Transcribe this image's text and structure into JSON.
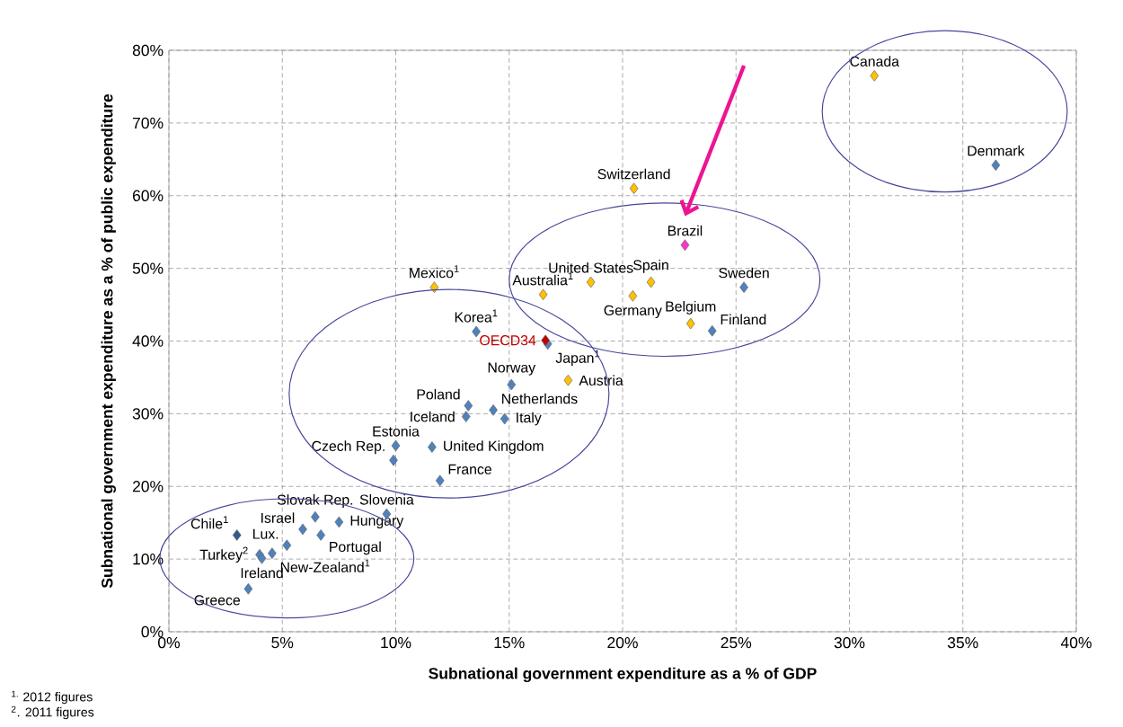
{
  "chart_data": {
    "type": "scatter",
    "xlabel": "Subnational government expenditure as a % of GDP",
    "ylabel": "Subnational government expenditure as a % of public expenditure",
    "xlim": [
      0,
      40
    ],
    "ylim": [
      0,
      80
    ],
    "xticks": [
      {
        "value": 0,
        "label": "0%"
      },
      {
        "value": 5,
        "label": "5%"
      },
      {
        "value": 10,
        "label": "10%"
      },
      {
        "value": 15,
        "label": "15%"
      },
      {
        "value": 20,
        "label": "20%"
      },
      {
        "value": 25,
        "label": "25%"
      },
      {
        "value": 30,
        "label": "30%"
      },
      {
        "value": 35,
        "label": "35%"
      },
      {
        "value": 40,
        "label": "40%"
      }
    ],
    "yticks": [
      {
        "value": 0,
        "label": "0%"
      },
      {
        "value": 10,
        "label": "10%"
      },
      {
        "value": 20,
        "label": "20%"
      },
      {
        "value": 30,
        "label": "30%"
      },
      {
        "value": 40,
        "label": "40%"
      },
      {
        "value": 50,
        "label": "50%"
      },
      {
        "value": 60,
        "label": "60%"
      },
      {
        "value": 70,
        "label": "70%"
      },
      {
        "value": 80,
        "label": "80%"
      }
    ],
    "grid": true,
    "marker": "diamond",
    "legend": false,
    "series": [
      {
        "color": "#4f81bd",
        "x": [
          3.5,
          4.0,
          4.1,
          4.55,
          5.2,
          5.9,
          6.45,
          6.7,
          7.5,
          9.6,
          13.55,
          16.7,
          15.1,
          13.2,
          13.1,
          14.3,
          14.8,
          10.0,
          9.9,
          11.6,
          11.95,
          25.35,
          23.95,
          36.45
        ],
        "values": [
          5.9,
          10.6,
          10.1,
          10.8,
          11.9,
          14.1,
          15.8,
          13.3,
          15.1,
          16.2,
          41.3,
          39.6,
          34.0,
          31.1,
          29.6,
          30.5,
          29.3,
          25.6,
          23.6,
          25.4,
          20.8,
          47.4,
          41.4,
          64.2
        ]
      },
      {
        "color": "#2e5c8a",
        "x": [
          3.0
        ],
        "values": [
          13.3
        ]
      },
      {
        "color": "#ffc000",
        "x": [
          17.6,
          11.7,
          20.5,
          18.6,
          21.25,
          16.5,
          20.45,
          23.0,
          31.1
        ],
        "values": [
          34.6,
          47.4,
          61.0,
          48.1,
          48.1,
          46.4,
          46.2,
          42.4,
          76.5
        ]
      },
      {
        "name": "OECD34",
        "color": "#c00000",
        "x": [
          16.6
        ],
        "values": [
          40.1
        ]
      },
      {
        "color": "#ff33cc",
        "x": [
          22.75
        ],
        "values": [
          53.2
        ]
      }
    ],
    "annotations": [
      {
        "text": "Greece",
        "x": 3.5,
        "y": 5.9
      },
      {
        "text": "Turkey$^{2}$",
        "x": 4.0,
        "y": 10.6
      },
      {
        "text": "Ireland",
        "x": 4.1,
        "y": 10.1
      },
      {
        "text": "New-Zealand$^{1}$",
        "x": 4.55,
        "y": 10.8
      },
      {
        "text": "Lux.",
        "x": 5.2,
        "y": 11.9
      },
      {
        "text": "Israel",
        "x": 5.9,
        "y": 14.1
      },
      {
        "text": "Slovak Rep.",
        "x": 6.45,
        "y": 15.8
      },
      {
        "text": "Portugal",
        "x": 6.7,
        "y": 13.3
      },
      {
        "text": "Hungary",
        "x": 7.5,
        "y": 15.1
      },
      {
        "text": "Slovenia",
        "x": 9.6,
        "y": 16.2
      },
      {
        "text": "Korea$^{1}$",
        "x": 13.55,
        "y": 41.3
      },
      {
        "text": "Japan$^{1}$",
        "x": 16.7,
        "y": 39.6
      },
      {
        "text": "Norway",
        "x": 15.1,
        "y": 34.0
      },
      {
        "text": "Poland",
        "x": 13.2,
        "y": 31.1
      },
      {
        "text": "Iceland",
        "x": 13.1,
        "y": 29.6
      },
      {
        "text": "Netherlands",
        "x": 14.3,
        "y": 30.5
      },
      {
        "text": "Italy",
        "x": 14.8,
        "y": 29.3
      },
      {
        "text": "Estonia",
        "x": 10.0,
        "y": 25.6
      },
      {
        "text": "Czech Rep.",
        "x": 9.9,
        "y": 23.6
      },
      {
        "text": "United Kingdom",
        "x": 11.6,
        "y": 25.4
      },
      {
        "text": "France",
        "x": 11.95,
        "y": 20.8
      },
      {
        "text": "Sweden",
        "x": 25.35,
        "y": 47.4
      },
      {
        "text": "Finland",
        "x": 23.95,
        "y": 41.4
      },
      {
        "text": "Denmark",
        "x": 36.45,
        "y": 64.2
      },
      {
        "text": "Chile$^{1}$",
        "x": 3.0,
        "y": 13.3
      },
      {
        "text": "Austria",
        "x": 17.6,
        "y": 34.6
      },
      {
        "text": "Mexico$^{1}$",
        "x": 11.7,
        "y": 47.4
      },
      {
        "text": "Switzerland",
        "x": 20.5,
        "y": 61.0
      },
      {
        "text": "United States",
        "x": 18.6,
        "y": 48.1
      },
      {
        "text": "Spain",
        "x": 21.25,
        "y": 48.1
      },
      {
        "text": "Australia$^{1}$",
        "x": 16.5,
        "y": 46.4
      },
      {
        "text": "Germany",
        "x": 20.45,
        "y": 46.2
      },
      {
        "text": "Belgium",
        "x": 23.0,
        "y": 42.4
      },
      {
        "text": "Canada",
        "x": 31.1,
        "y": 76.5
      },
      {
        "text": "Brazil",
        "x": 22.75,
        "y": 53.2
      },
      "$^{1.}$ 2012 figures",
      "$^{2}$. 2011 figures"
    ]
  }
}
